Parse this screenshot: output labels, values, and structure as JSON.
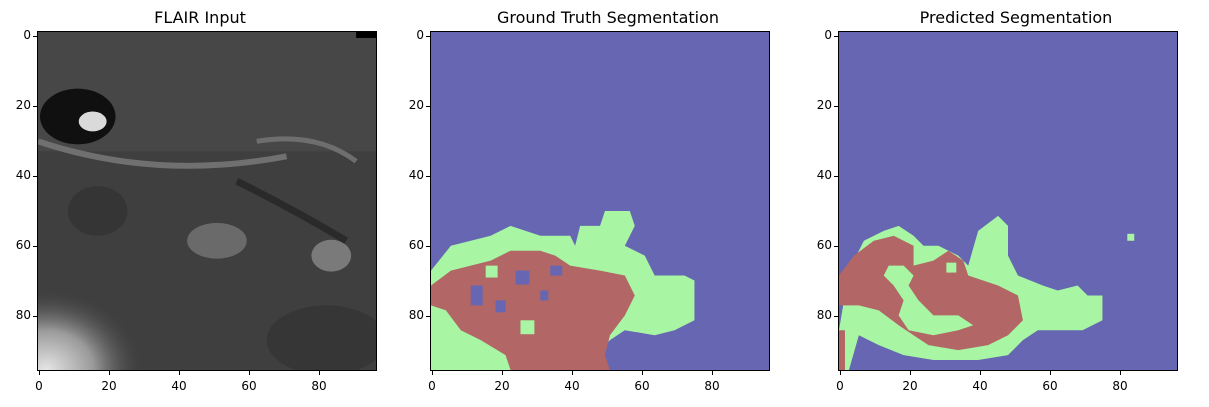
{
  "figure": {
    "panels": [
      {
        "title": "FLAIR Input",
        "image": "flair-mri-slice",
        "xticks": [
          "0",
          "20",
          "40",
          "60",
          "80"
        ],
        "yticks": [
          "0",
          "20",
          "40",
          "60",
          "80"
        ]
      },
      {
        "title": "Ground Truth Segmentation",
        "image": "ground-truth-mask",
        "xticks": [
          "0",
          "20",
          "40",
          "60",
          "80"
        ],
        "yticks": [
          "0",
          "20",
          "40",
          "60",
          "80"
        ]
      },
      {
        "title": "Predicted Segmentation",
        "image": "predicted-mask",
        "xticks": [
          "0",
          "20",
          "40",
          "60",
          "80"
        ],
        "yticks": [
          "0",
          "20",
          "40",
          "60",
          "80"
        ]
      }
    ],
    "colors": {
      "background": "#6666b2",
      "edema": "#a8f5a3",
      "tumor_core": "#b26666"
    }
  }
}
